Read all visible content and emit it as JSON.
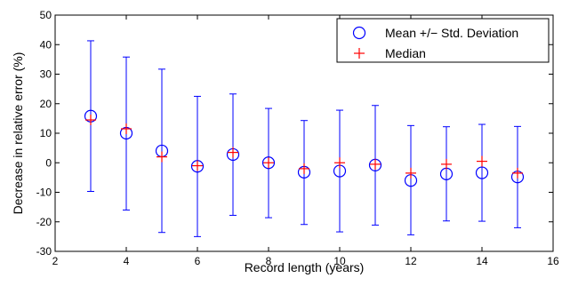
{
  "chart_data": {
    "type": "scatter",
    "title": "",
    "xlabel": "Record length (years)",
    "ylabel": "Decrease in relative error  (%)",
    "xlim": [
      2,
      16
    ],
    "ylim": [
      -30,
      50
    ],
    "xticks": [
      2,
      4,
      6,
      8,
      10,
      12,
      14,
      16
    ],
    "yticks": [
      -30,
      -20,
      -10,
      0,
      10,
      20,
      30,
      40,
      50
    ],
    "grid": false,
    "legend_position": "top-right",
    "x": [
      3,
      4,
      5,
      6,
      7,
      8,
      9,
      10,
      11,
      12,
      13,
      14,
      15
    ],
    "series": [
      {
        "name": "Mean +/− Std. Deviation",
        "marker": "circle",
        "color": "#0000ff",
        "mean": [
          15.8,
          10.0,
          4.0,
          -1.2,
          2.8,
          0.0,
          -3.2,
          -2.8,
          -0.8,
          -6.0,
          -3.8,
          -3.4,
          -4.8
        ],
        "upper": [
          41.3,
          35.8,
          31.7,
          22.5,
          23.3,
          18.4,
          14.3,
          17.8,
          19.4,
          12.6,
          12.2,
          13.0,
          12.3
        ],
        "lower": [
          -9.7,
          -16.0,
          -23.6,
          -25.0,
          -17.8,
          -18.6,
          -20.9,
          -23.4,
          -21.1,
          -24.4,
          -19.7,
          -19.8,
          -22.0
        ]
      },
      {
        "name": "Median",
        "marker": "plus",
        "color": "#ff0000",
        "values": [
          14.5,
          11.5,
          2.0,
          -1.0,
          3.5,
          0.0,
          -2.0,
          0.0,
          -0.5,
          -3.5,
          -0.5,
          0.5,
          -3.5
        ]
      }
    ]
  }
}
